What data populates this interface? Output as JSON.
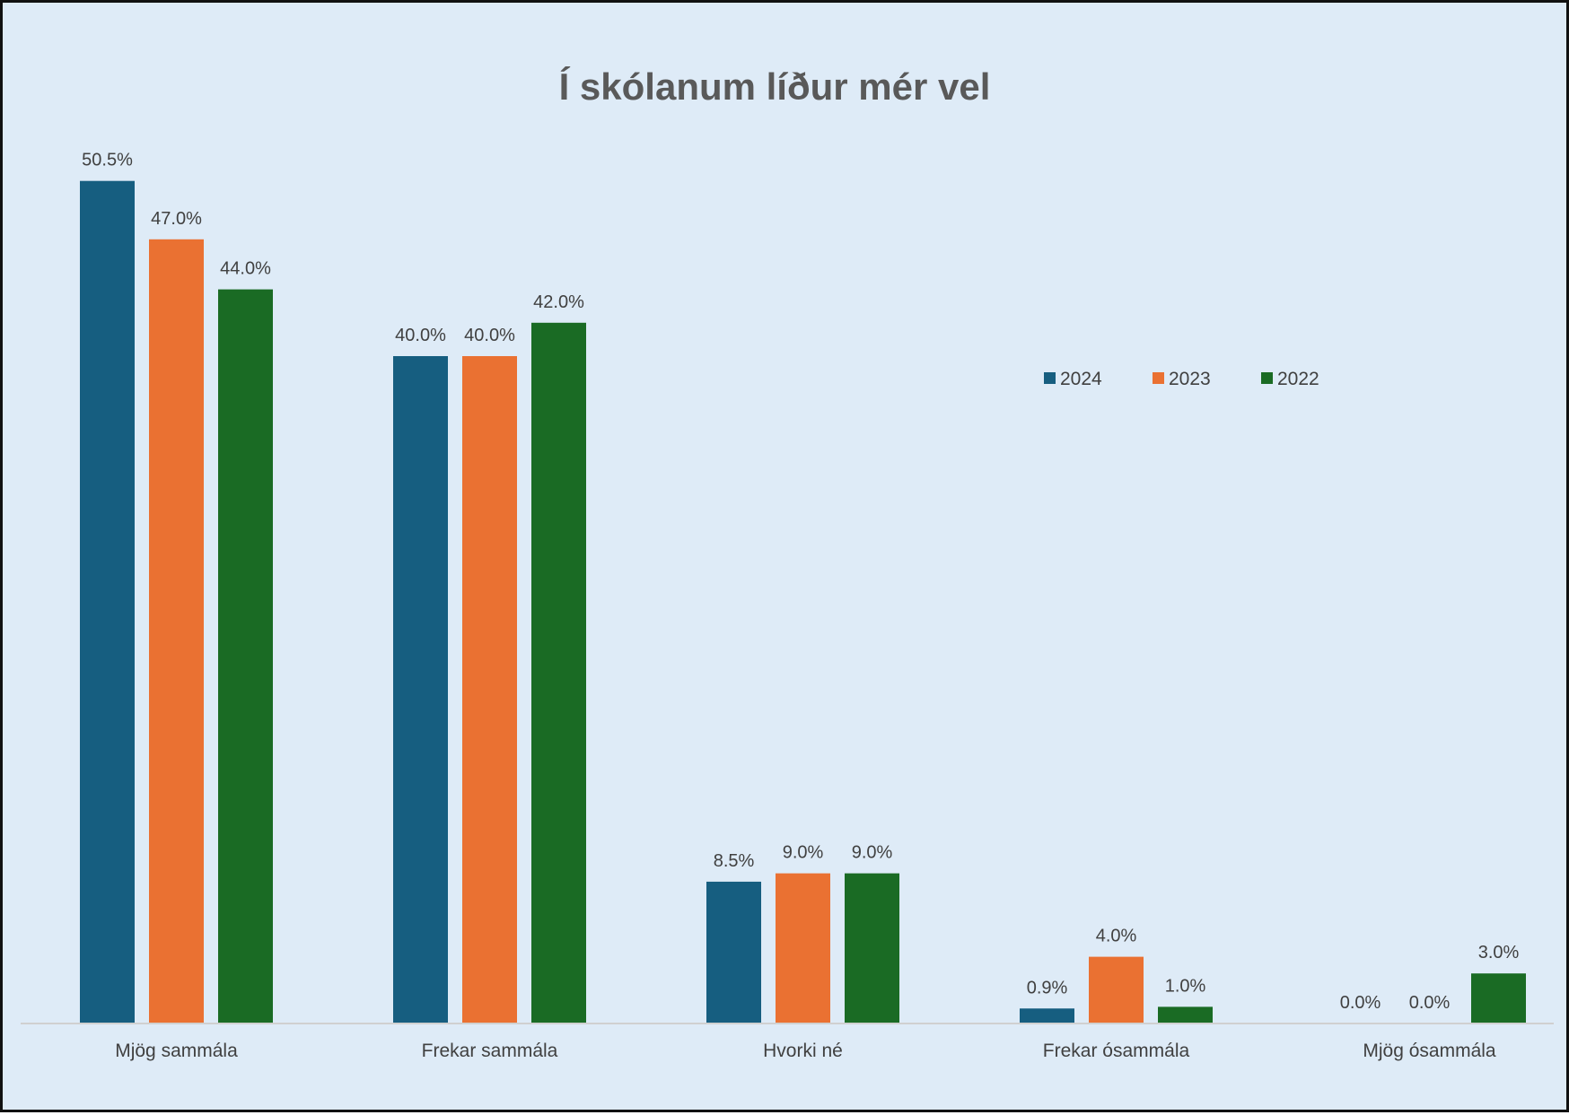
{
  "chart_data": {
    "type": "bar",
    "title": "Í skólanum líður mér vel",
    "xlabel": "",
    "ylabel": "",
    "ylim": [
      0,
      52
    ],
    "grid": false,
    "legend_position": "top-right",
    "categories": [
      "Mjög sammála",
      "Frekar sammála",
      "Hvorki né",
      "Frekar ósammála",
      "Mjög ósammála"
    ],
    "series": [
      {
        "name": "2024",
        "color": "#165e80",
        "values": [
          50.5,
          40.0,
          8.5,
          0.9,
          0.0
        ]
      },
      {
        "name": "2023",
        "color": "#ea7132",
        "values": [
          47.0,
          40.0,
          9.0,
          4.0,
          0.0
        ]
      },
      {
        "name": "2022",
        "color": "#1a6b24",
        "values": [
          44.0,
          42.0,
          9.0,
          1.0,
          3.0
        ]
      }
    ],
    "value_labels": [
      [
        "50.5%",
        "40.0%",
        "8.5%",
        "0.9%",
        "0.0%"
      ],
      [
        "47.0%",
        "40.0%",
        "9.0%",
        "4.0%",
        "0.0%"
      ],
      [
        "44.0%",
        "42.0%",
        "9.0%",
        "1.0%",
        "3.0%"
      ]
    ]
  },
  "colors": {
    "background": "#deebf7",
    "axis_line": "#d0d0d0",
    "text": "#404040",
    "title": "#595959"
  }
}
